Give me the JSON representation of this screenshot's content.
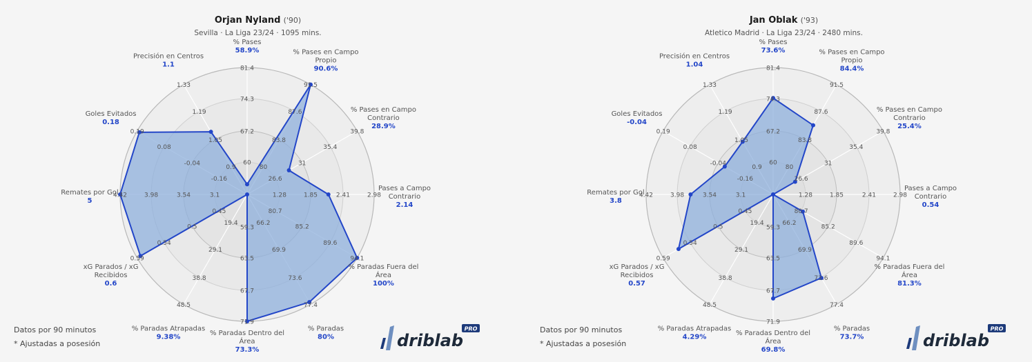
{
  "common": {
    "footnote_1": "Datos por 90 minutos",
    "footnote_2": "* Ajustadas a posesión",
    "logo_text": "driblab",
    "logo_badge": "PRO",
    "accent_color": "#2346c8",
    "fill_color": "#8fb0dc"
  },
  "players": [
    {
      "name": "Orjan Nyland",
      "year": "('90)",
      "subtitle": "Sevilla · La Liga 23/24 · 1095 mins.",
      "values": [
        "58.9%",
        "90.6%",
        "28.9%",
        "2.14",
        "100%",
        "80%",
        "73.3%",
        "9.38%",
        "0.6",
        "5",
        "0.18",
        "1.1"
      ],
      "radii": [
        0.08,
        1.0,
        0.38,
        0.64,
        1.0,
        0.98,
        1.0,
        0.0,
        0.97,
        1.0,
        0.98,
        0.57
      ]
    },
    {
      "name": "Jan Oblak",
      "year": "('93)",
      "subtitle": "Atletico Madrid · La Liga 23/24 · 2480 mins.",
      "values": [
        "73.6%",
        "84.4%",
        "25.4%",
        "0.54",
        "81.3%",
        "73.7%",
        "69.8%",
        "4.29%",
        "0.57",
        "3.8",
        "-0.04",
        "1.04"
      ],
      "radii": [
        0.76,
        0.63,
        0.2,
        0.0,
        0.27,
        0.76,
        0.82,
        0.0,
        0.86,
        0.65,
        0.44,
        0.48
      ]
    }
  ],
  "chart_data": [
    {
      "type": "radar",
      "title": "Orjan Nyland ('90)",
      "subtitle": "Sevilla · La Liga 23/24 · 1095 mins.",
      "axes": [
        "% Pases",
        "% Pases en Campo Propio",
        "% Pases en Campo Contrario",
        "Pases a Campo Contrario",
        "% Paradas Fuera del Área",
        "% Paradas",
        "% Paradas Dentro del Área",
        "% Paradas Atrapadas",
        "xG Parados / xG Recibidos",
        "Remates por Gol",
        "Goles Evitados",
        "Precisión en Centros"
      ],
      "values": [
        58.9,
        90.6,
        28.9,
        2.14,
        100,
        80,
        73.3,
        9.38,
        0.6,
        5,
        0.18,
        1.1
      ],
      "ticks": {
        "% Pases": [
          60,
          67.2,
          74.3,
          81.4
        ],
        "% Pases en Campo Propio": [
          80,
          83.8,
          87.6,
          91.5
        ],
        "% Pases en Campo Contrario": [
          26.6,
          31,
          35.4,
          39.8
        ],
        "Pases a Campo Contrario": [
          1.28,
          1.85,
          2.41,
          2.98
        ],
        "% Paradas Fuera del Área": [
          80.7,
          85.2,
          89.6,
          94.1
        ],
        "% Paradas": [
          66.2,
          69.9,
          73.6,
          77.4
        ],
        "% Paradas Dentro del Área": [
          59.3,
          63.5,
          67.7,
          71.9
        ],
        "% Paradas Atrapadas": [
          19.4,
          29.1,
          38.8,
          48.5
        ],
        "xG Parados / xG Recibidos": [
          0.45,
          0.5,
          0.54,
          0.59
        ],
        "Remates por Gol": [
          3.1,
          3.54,
          3.98,
          4.42
        ],
        "Goles Evitados": [
          -0.16,
          -0.04,
          0.08,
          0.19
        ],
        "Precisión en Centros": [
          0.9,
          1.05,
          1.19,
          1.33
        ]
      }
    },
    {
      "type": "radar",
      "title": "Jan Oblak ('93)",
      "subtitle": "Atletico Madrid · La Liga 23/24 · 2480 mins.",
      "axes": [
        "% Pases",
        "% Pases en Campo Propio",
        "% Pases en Campo Contrario",
        "Pases a Campo Contrario",
        "% Paradas Fuera del Área",
        "% Paradas",
        "% Paradas Dentro del Área",
        "% Paradas Atrapadas",
        "xG Parados / xG Recibidos",
        "Remates por Gol",
        "Goles Evitados",
        "Precisión en Centros"
      ],
      "values": [
        73.6,
        84.4,
        25.4,
        0.54,
        81.3,
        73.7,
        69.8,
        4.29,
        0.57,
        3.8,
        -0.04,
        1.04
      ],
      "ticks": "same as first chart"
    }
  ],
  "axes_labels": [
    [
      "% Pases"
    ],
    [
      "% Pases en Campo",
      "Propio"
    ],
    [
      "% Pases en Campo",
      "Contrario"
    ],
    [
      "Pases a Campo",
      "Contrario"
    ],
    [
      "% Paradas Fuera del",
      "Área"
    ],
    [
      "% Paradas"
    ],
    [
      "% Paradas Dentro del",
      "Área"
    ],
    [
      "% Paradas Atrapadas"
    ],
    [
      "xG Parados / xG",
      "Recibidos"
    ],
    [
      "Remates por Gol"
    ],
    [
      "Goles Evitados"
    ],
    [
      "Precisión en Centros"
    ]
  ],
  "axes_ticks": [
    [
      "60",
      "67.2",
      "74.3",
      "81.4"
    ],
    [
      "80",
      "83.8",
      "87.6",
      "91.5"
    ],
    [
      "26.6",
      "31",
      "35.4",
      "39.8"
    ],
    [
      "1.28",
      "1.85",
      "2.41",
      "2.98"
    ],
    [
      "80.7",
      "85.2",
      "89.6",
      "94.1"
    ],
    [
      "66.2",
      "69.9",
      "73.6",
      "77.4"
    ],
    [
      "59.3",
      "63.5",
      "67.7",
      "71.9"
    ],
    [
      "19.4",
      "29.1",
      "38.8",
      "48.5"
    ],
    [
      "0.45",
      "0.5",
      "0.54",
      "0.59"
    ],
    [
      "3.1",
      "3.54",
      "3.98",
      "4.42"
    ],
    [
      "-0.16",
      "-0.04",
      "0.08",
      "0.19"
    ],
    [
      "0.9",
      "1.05",
      "1.19",
      "1.33"
    ]
  ]
}
